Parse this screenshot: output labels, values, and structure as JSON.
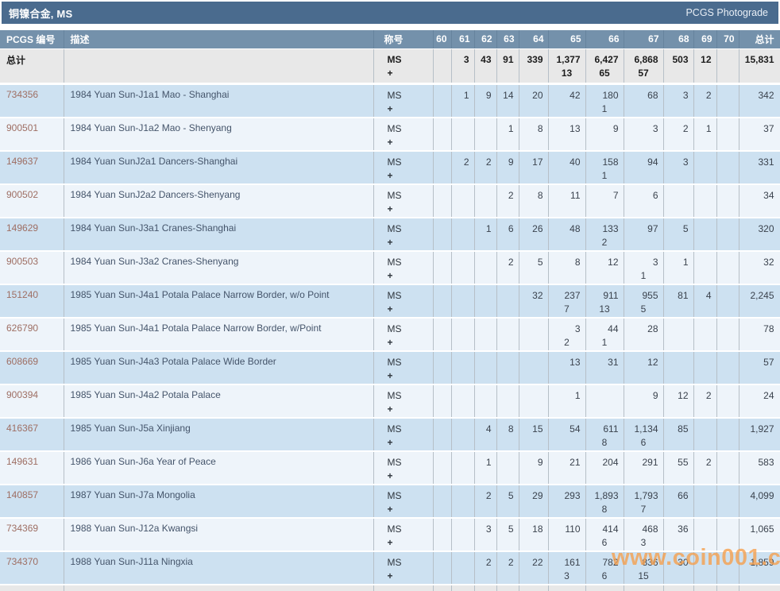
{
  "title_bar": {
    "title": "铜镍合金, MS",
    "right_link": "PCGS Photograde"
  },
  "columns": {
    "pcgs": "PCGS 编号",
    "desc": "描述",
    "designation": "称号",
    "grades": [
      "60",
      "61",
      "62",
      "63",
      "64",
      "65",
      "66",
      "67",
      "68",
      "69",
      "70"
    ],
    "total": "总计"
  },
  "designation": {
    "line1": "MS",
    "line2": "+"
  },
  "totals_row": {
    "label": "总计",
    "ms": [
      "",
      "3",
      "43",
      "91",
      "339",
      "1,377",
      "6,427",
      "6,868",
      "503",
      "12",
      ""
    ],
    "plus": [
      "",
      "",
      "",
      "",
      "",
      "13",
      "65",
      "57",
      "",
      "",
      ""
    ],
    "total": "15,831"
  },
  "rows": [
    {
      "pcgs": "734356",
      "desc": "1984 Yuan Sun-J1a1 Mao - Shanghai",
      "ms": [
        "",
        "1",
        "9",
        "14",
        "20",
        "42",
        "180",
        "68",
        "3",
        "2",
        ""
      ],
      "plus": [
        "",
        "",
        "",
        "",
        "",
        "",
        "1",
        "",
        "",
        "",
        ""
      ],
      "total": "342"
    },
    {
      "pcgs": "900501",
      "desc": "1984 Yuan Sun-J1a2 Mao - Shenyang",
      "ms": [
        "",
        "",
        "",
        "1",
        "8",
        "13",
        "9",
        "3",
        "2",
        "1",
        ""
      ],
      "plus": [
        "",
        "",
        "",
        "",
        "",
        "",
        "",
        "",
        "",
        "",
        ""
      ],
      "total": "37"
    },
    {
      "pcgs": "149637",
      "desc": "1984 Yuan SunJ2a1 Dancers-Shanghai",
      "ms": [
        "",
        "2",
        "2",
        "9",
        "17",
        "40",
        "158",
        "94",
        "3",
        "",
        ""
      ],
      "plus": [
        "",
        "",
        "",
        "",
        "",
        "",
        "1",
        "",
        "",
        "",
        ""
      ],
      "total": "331"
    },
    {
      "pcgs": "900502",
      "desc": "1984 Yuan SunJ2a2 Dancers-Shenyang",
      "ms": [
        "",
        "",
        "",
        "2",
        "8",
        "11",
        "7",
        "6",
        "",
        "",
        ""
      ],
      "plus": [
        "",
        "",
        "",
        "",
        "",
        "",
        "",
        "",
        "",
        "",
        ""
      ],
      "total": "34"
    },
    {
      "pcgs": "149629",
      "desc": "1984 Yuan Sun-J3a1 Cranes-Shanghai",
      "ms": [
        "",
        "",
        "1",
        "6",
        "26",
        "48",
        "133",
        "97",
        "5",
        "",
        ""
      ],
      "plus": [
        "",
        "",
        "",
        "",
        "",
        "",
        "2",
        "",
        "",
        "",
        ""
      ],
      "total": "320"
    },
    {
      "pcgs": "900503",
      "desc": "1984 Yuan Sun-J3a2 Cranes-Shenyang",
      "ms": [
        "",
        "",
        "",
        "2",
        "5",
        "8",
        "12",
        "3",
        "1",
        "",
        ""
      ],
      "plus": [
        "",
        "",
        "",
        "",
        "",
        "",
        "",
        "1",
        "",
        "",
        ""
      ],
      "total": "32"
    },
    {
      "pcgs": "151240",
      "desc": "1985 Yuan Sun-J4a1 Potala Palace Narrow Border, w/o Point",
      "ms": [
        "",
        "",
        "",
        "",
        "32",
        "237",
        "911",
        "955",
        "81",
        "4",
        ""
      ],
      "plus": [
        "",
        "",
        "",
        "",
        "",
        "7",
        "13",
        "5",
        "",
        "",
        ""
      ],
      "total": "2,245"
    },
    {
      "pcgs": "626790",
      "desc": "1985 Yuan Sun-J4a1 Potala Palace Narrow Border, w/Point",
      "ms": [
        "",
        "",
        "",
        "",
        "",
        "3",
        "44",
        "28",
        "",
        "",
        ""
      ],
      "plus": [
        "",
        "",
        "",
        "",
        "",
        "2",
        "1",
        "",
        "",
        "",
        ""
      ],
      "total": "78"
    },
    {
      "pcgs": "608669",
      "desc": "1985 Yuan Sun-J4a3 Potala Palace Wide Border",
      "ms": [
        "",
        "",
        "",
        "",
        "",
        "13",
        "31",
        "12",
        "",
        "",
        ""
      ],
      "plus": [
        "",
        "",
        "",
        "",
        "",
        "",
        "",
        "",
        "",
        "",
        ""
      ],
      "total": "57"
    },
    {
      "pcgs": "900394",
      "desc": "1985 Yuan Sun-J4a2 Potala Palace",
      "ms": [
        "",
        "",
        "",
        "",
        "",
        "1",
        "",
        "9",
        "12",
        "2",
        ""
      ],
      "plus": [
        "",
        "",
        "",
        "",
        "",
        "",
        "",
        "",
        "",
        "",
        ""
      ],
      "total": "24"
    },
    {
      "pcgs": "416367",
      "desc": "1985 Yuan Sun-J5a Xinjiang",
      "ms": [
        "",
        "",
        "4",
        "8",
        "15",
        "54",
        "611",
        "1,134",
        "85",
        "",
        ""
      ],
      "plus": [
        "",
        "",
        "",
        "",
        "",
        "",
        "8",
        "6",
        "",
        "",
        ""
      ],
      "total": "1,927"
    },
    {
      "pcgs": "149631",
      "desc": "1986 Yuan Sun-J6a Year of Peace",
      "ms": [
        "",
        "",
        "1",
        "",
        "9",
        "21",
        "204",
        "291",
        "55",
        "2",
        ""
      ],
      "plus": [
        "",
        "",
        "",
        "",
        "",
        "",
        "",
        "",
        "",
        "",
        ""
      ],
      "total": "583"
    },
    {
      "pcgs": "140857",
      "desc": "1987 Yuan Sun-J7a Mongolia",
      "ms": [
        "",
        "",
        "2",
        "5",
        "29",
        "293",
        "1,893",
        "1,793",
        "66",
        "",
        ""
      ],
      "plus": [
        "",
        "",
        "",
        "",
        "",
        "",
        "8",
        "7",
        "",
        "",
        ""
      ],
      "total": "4,099"
    },
    {
      "pcgs": "734369",
      "desc": "1988 Yuan Sun-J12a Kwangsi",
      "ms": [
        "",
        "",
        "3",
        "5",
        "18",
        "110",
        "414",
        "468",
        "36",
        "",
        ""
      ],
      "plus": [
        "",
        "",
        "",
        "",
        "",
        "",
        "6",
        "3",
        "",
        "",
        ""
      ],
      "total": "1,065"
    },
    {
      "pcgs": "734370",
      "desc": "1988 Yuan Sun-J11a Ningxia",
      "ms": [
        "",
        "",
        "2",
        "2",
        "22",
        "161",
        "782",
        "836",
        "30",
        "",
        ""
      ],
      "plus": [
        "",
        "",
        "",
        "",
        "",
        "3",
        "6",
        "15",
        "",
        "",
        ""
      ],
      "total": "1,859"
    }
  ],
  "watermark": "www.coin001.com",
  "colors": {
    "title_bar_bg": "#4a6b8e",
    "header_row_bg": "#7491ab",
    "totals_row_bg": "#e8e8e8",
    "row_blue": "#cde1f1",
    "row_light": "#eef4fa",
    "pcgs_link": "#9e6e63",
    "watermark_orange": "#f69e4a"
  }
}
